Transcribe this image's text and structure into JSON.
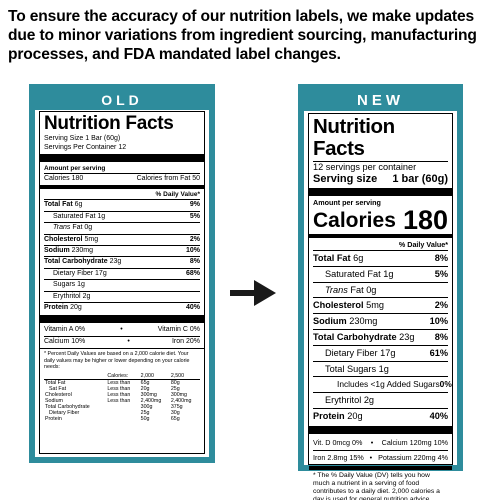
{
  "intro": "To ensure the accuracy of our nutrition labels, we make updates due to minor variations from ingredient sourcing, manufacturing processes, and FDA mandated label changes.",
  "old": {
    "header": "OLD",
    "title": "Nutrition Facts",
    "serving_size": "Serving Size 1 Bar (60g)",
    "servings_per_container": "Servings Per Container 12",
    "amount_per_serving": "Amount per serving",
    "calories": "Calories 180",
    "calories_from_fat": "Calories from Fat 50",
    "daily_value_header": "% Daily Value*",
    "nutrients": [
      {
        "name": "Total Fat",
        "amount": "6g",
        "dv": "9%"
      },
      {
        "name": "Saturated Fat",
        "amount": "1g",
        "dv": "5%"
      },
      {
        "name": "Trans",
        "amount": "Fat 0g",
        "dv": ""
      },
      {
        "name": "Cholesterol",
        "amount": "5mg",
        "dv": "2%"
      },
      {
        "name": "Sodium",
        "amount": "230mg",
        "dv": "10%"
      },
      {
        "name": "Total Carbohydrate",
        "amount": "23g",
        "dv": "8%"
      },
      {
        "name": "Dietary Fiber",
        "amount": "17g",
        "dv": "68%"
      },
      {
        "name": "Sugars",
        "amount": "1g",
        "dv": ""
      },
      {
        "name": "Erythritol",
        "amount": "2g",
        "dv": ""
      },
      {
        "name": "Protein",
        "amount": "20g",
        "dv": "40%"
      }
    ],
    "vitamin_a": "Vitamin A 0%",
    "vitamin_c": "Vitamin C 0%",
    "calcium": "Calcium 10%",
    "iron": "Iron 20%",
    "bullet": "•",
    "footnote": "* Percent Daily Values are based on a 2,000 calorie diet. Your daily values may be higher or lower depending on your calorie needs:",
    "table_header": [
      "",
      "Calories:",
      "2,000",
      "2,500"
    ],
    "table_rows": [
      [
        "Total Fat",
        "Less than",
        "65g",
        "80g"
      ],
      [
        "Sat Fat",
        "Less than",
        "20g",
        "25g"
      ],
      [
        "Cholesterol",
        "Less than",
        "300mg",
        "300mg"
      ],
      [
        "Sodium",
        "Less than",
        "2,400mg",
        "2,400mg"
      ],
      [
        "Total Carbohydrate",
        "",
        "300g",
        "375g"
      ],
      [
        "Dietary Fiber",
        "",
        "25g",
        "30g"
      ],
      [
        "Protein",
        "",
        "50g",
        "65g"
      ]
    ]
  },
  "arrow_icon": "right-arrow-icon",
  "new": {
    "header": "NEW",
    "title": "Nutrition Facts",
    "servings_per_container": "12 servings per container",
    "serving_size_label": "Serving size",
    "serving_size_value": "1 bar (60g)",
    "amount_per_serving": "Amount per serving",
    "calories_label": "Calories",
    "calories_value": "180",
    "daily_value_header": "% Daily Value*",
    "nutrients": [
      {
        "name": "Total Fat",
        "amount": "6g",
        "dv": "8%"
      },
      {
        "name": "Saturated Fat",
        "amount": "1g",
        "dv": "5%"
      },
      {
        "name": "Trans",
        "amount": "Fat 0g",
        "dv": ""
      },
      {
        "name": "Cholesterol",
        "amount": "5mg",
        "dv": "2%"
      },
      {
        "name": "Sodium",
        "amount": "230mg",
        "dv": "10%"
      },
      {
        "name": "Total Carbohydrate",
        "amount": "23g",
        "dv": "8%"
      },
      {
        "name": "Dietary Fiber",
        "amount": "17g",
        "dv": "61%"
      },
      {
        "name": "Total Sugars",
        "amount": "1g",
        "dv": ""
      },
      {
        "name": "Includes <1g Added Sugars",
        "amount": "",
        "dv": "0%"
      },
      {
        "name": "Erythritol",
        "amount": "2g",
        "dv": ""
      },
      {
        "name": "Protein",
        "amount": "20g",
        "dv": "40%"
      }
    ],
    "vitamin_d": "Vit. D 0mcg 0%",
    "calcium": "Calcium 120mg 10%",
    "iron": "Iron 2.8mg 15%",
    "potassium": "Potassium 220mg 4%",
    "bullet": "•",
    "footnote": "* The % Daily Value (DV) tells you how much a nutrient in a serving of food contributes to a daily diet. 2,000 calories a day is used for general nutrition advice."
  },
  "colors": {
    "accent": "#2e8c9c",
    "arrow": "#1a1a1a"
  }
}
